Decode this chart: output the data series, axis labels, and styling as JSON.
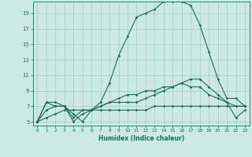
{
  "xlabel": "Humidex (Indice chaleur)",
  "ylabel": "",
  "xlim": [
    -0.5,
    23.5
  ],
  "ylim": [
    4.5,
    20.5
  ],
  "yticks": [
    5,
    7,
    9,
    11,
    13,
    15,
    17,
    19
  ],
  "xticks": [
    0,
    1,
    2,
    3,
    4,
    5,
    6,
    7,
    8,
    9,
    10,
    11,
    12,
    13,
    14,
    15,
    16,
    17,
    18,
    19,
    20,
    21,
    22,
    23
  ],
  "bg_color": "#cce9e3",
  "grid_color": "#9fccc4",
  "line_color": "#1a6b5a",
  "line1": [
    5.0,
    7.5,
    7.0,
    7.0,
    6.0,
    5.0,
    6.5,
    7.5,
    10.0,
    13.5,
    16.0,
    18.5,
    19.0,
    19.5,
    20.5,
    20.5,
    20.5,
    20.0,
    17.5,
    14.0,
    10.5,
    8.0,
    8.0,
    7.0
  ],
  "line2": [
    5.0,
    7.5,
    7.5,
    7.0,
    5.5,
    6.5,
    6.5,
    7.0,
    7.5,
    7.5,
    7.5,
    7.5,
    8.0,
    8.5,
    9.0,
    9.5,
    10.0,
    10.5,
    10.5,
    9.5,
    8.5,
    7.5,
    7.0,
    7.0
  ],
  "line3": [
    5.0,
    5.5,
    6.0,
    6.5,
    6.5,
    6.5,
    6.5,
    6.5,
    6.5,
    6.5,
    6.5,
    6.5,
    6.5,
    7.0,
    7.0,
    7.0,
    7.0,
    7.0,
    7.0,
    7.0,
    7.0,
    7.0,
    7.0,
    7.0
  ],
  "line4": [
    5.0,
    6.5,
    7.0,
    7.0,
    5.0,
    6.0,
    6.5,
    7.0,
    7.5,
    8.0,
    8.5,
    8.5,
    9.0,
    9.0,
    9.5,
    9.5,
    10.0,
    9.5,
    9.5,
    8.5,
    8.0,
    7.5,
    5.5,
    6.5
  ]
}
